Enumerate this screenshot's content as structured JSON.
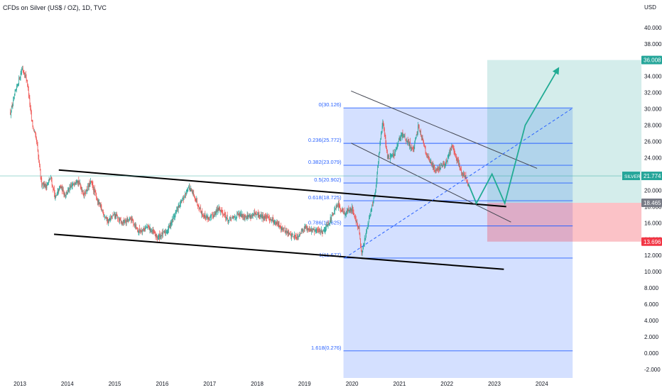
{
  "header": {
    "symbol_title": "CFDs on Silver (US$ / OZ), 1D, TVC",
    "currency": "USD"
  },
  "chart_data": {
    "type": "candlestick",
    "x_axis": {
      "labels": [
        "2013",
        "2014",
        "2015",
        "2016",
        "2017",
        "2018",
        "2019",
        "2020",
        "2021",
        "2022",
        "2023",
        "2024"
      ]
    },
    "y_axis": {
      "unit": "USD",
      "range": [
        -2,
        40
      ],
      "ticks": [
        "-2.000",
        "0.000",
        "2.000",
        "4.000",
        "6.000",
        "8.000",
        "10.000",
        "12.000",
        "14.000",
        "16.000",
        "18.000",
        "20.000",
        "22.000",
        "24.000",
        "26.000",
        "28.000",
        "30.000",
        "32.000",
        "34.000",
        "36.000",
        "38.000",
        "40.000"
      ]
    },
    "colors": {
      "up": "#26a69a",
      "down": "#ef5350",
      "fib": "#2962ff"
    },
    "price_path": [
      [
        2012.8,
        29.5
      ],
      [
        2012.95,
        33
      ],
      [
        2013.05,
        35
      ],
      [
        2013.15,
        33.5
      ],
      [
        2013.25,
        28.5
      ],
      [
        2013.35,
        26
      ],
      [
        2013.45,
        21
      ],
      [
        2013.55,
        20.5
      ],
      [
        2013.65,
        21.5
      ],
      [
        2013.75,
        19
      ],
      [
        2013.85,
        20.5
      ],
      [
        2013.95,
        19.5
      ],
      [
        2014.1,
        20.5
      ],
      [
        2014.2,
        21.5
      ],
      [
        2014.35,
        19.5
      ],
      [
        2014.5,
        21
      ],
      [
        2014.65,
        18.5
      ],
      [
        2014.85,
        16.2
      ],
      [
        2015.0,
        17
      ],
      [
        2015.15,
        16
      ],
      [
        2015.35,
        16.5
      ],
      [
        2015.5,
        15
      ],
      [
        2015.7,
        15.5
      ],
      [
        2015.9,
        14.2
      ],
      [
        2016.1,
        15
      ],
      [
        2016.3,
        17.5
      ],
      [
        2016.45,
        19
      ],
      [
        2016.55,
        20.5
      ],
      [
        2016.7,
        19
      ],
      [
        2016.85,
        17
      ],
      [
        2017.0,
        16.5
      ],
      [
        2017.2,
        17.8
      ],
      [
        2017.4,
        16.3
      ],
      [
        2017.6,
        17
      ],
      [
        2017.8,
        16.8
      ],
      [
        2017.95,
        17
      ],
      [
        2018.1,
        16.8
      ],
      [
        2018.3,
        16.5
      ],
      [
        2018.5,
        15.5
      ],
      [
        2018.7,
        14.5
      ],
      [
        2018.85,
        14.3
      ],
      [
        2019.0,
        15.5
      ],
      [
        2019.2,
        15
      ],
      [
        2019.4,
        15
      ],
      [
        2019.55,
        16.5
      ],
      [
        2019.7,
        18.2
      ],
      [
        2019.85,
        17.2
      ],
      [
        2020.0,
        17.8
      ],
      [
        2020.15,
        15
      ],
      [
        2020.2,
        12
      ],
      [
        2020.3,
        15
      ],
      [
        2020.4,
        17.5
      ],
      [
        2020.5,
        20
      ],
      [
        2020.6,
        26.5
      ],
      [
        2020.65,
        28.5
      ],
      [
        2020.75,
        24
      ],
      [
        2020.9,
        24.5
      ],
      [
        2021.05,
        27
      ],
      [
        2021.15,
        26
      ],
      [
        2021.3,
        25
      ],
      [
        2021.4,
        28
      ],
      [
        2021.5,
        26
      ],
      [
        2021.6,
        24
      ],
      [
        2021.75,
        22.5
      ],
      [
        2021.9,
        23
      ],
      [
        2022.0,
        23.5
      ],
      [
        2022.1,
        25.5
      ],
      [
        2022.2,
        24
      ],
      [
        2022.3,
        22.5
      ],
      [
        2022.4,
        21.5
      ],
      [
        2022.45,
        20.8
      ]
    ],
    "fibonacci": [
      {
        "level": "0",
        "price": 30.126,
        "label": "0(30.126)"
      },
      {
        "level": "0.236",
        "price": 25.772,
        "label": "0.236(25.772)"
      },
      {
        "level": "0.382",
        "price": 23.079,
        "label": "0.382(23.079)"
      },
      {
        "level": "0.5",
        "price": 20.902,
        "label": "0.5(20.902)"
      },
      {
        "level": "0.618",
        "price": 18.725,
        "label": "0.618(18.725)"
      },
      {
        "level": "0.786",
        "price": 15.625,
        "label": "0.786(15.625)"
      },
      {
        "level": "1",
        "price": 11.677,
        "label": "1(11.677)"
      },
      {
        "level": "1.618",
        "price": 0.276,
        "label": "1.618(0.276)"
      }
    ],
    "position": {
      "entry": 18.465,
      "target": 36.008,
      "stop": 13.696
    },
    "current_price": {
      "symbol": "SILVER",
      "price": 21.774,
      "label": "21.774"
    },
    "price_labels": {
      "target": "36.008",
      "entry": "18.465",
      "stop": "13.696"
    },
    "projection_path": [
      [
        2022.45,
        20.8
      ],
      [
        2022.62,
        18.4
      ],
      [
        2022.95,
        22
      ],
      [
        2023.22,
        18.4
      ],
      [
        2023.65,
        28
      ],
      [
        2024.35,
        35
      ]
    ]
  }
}
